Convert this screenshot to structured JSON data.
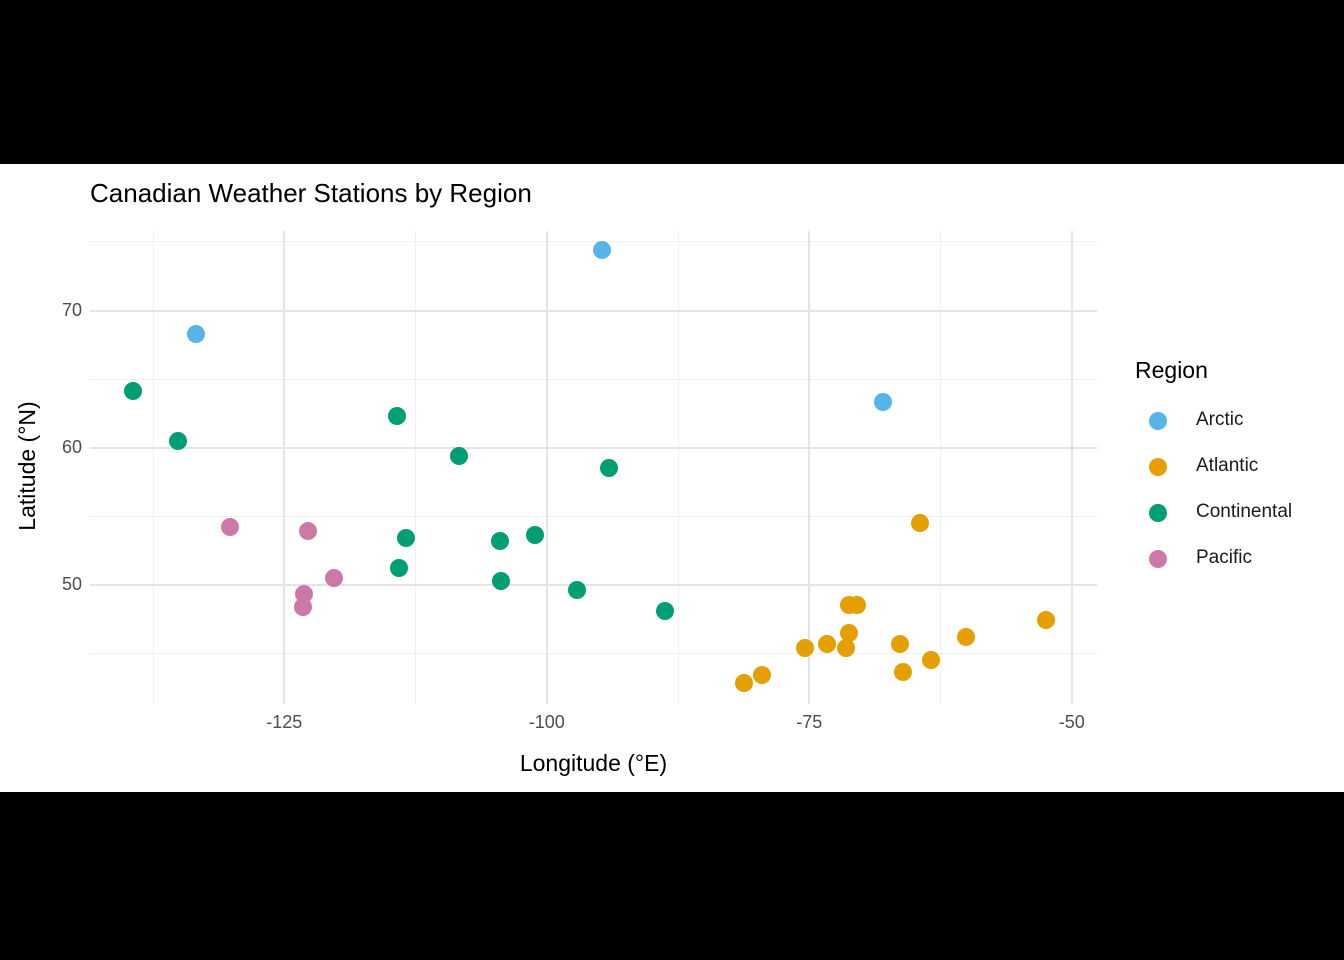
{
  "title": "Canadian Weather Stations by Region",
  "axes": {
    "x": {
      "label": "Longitude (°E)"
    },
    "y": {
      "label": "Latitude (°N)"
    }
  },
  "legend": {
    "title": "Region",
    "items": [
      {
        "label": "Arctic",
        "color": "#56B4E9"
      },
      {
        "label": "Atlantic",
        "color": "#E69F00"
      },
      {
        "label": "Continental",
        "color": "#009E73"
      },
      {
        "label": "Pacific",
        "color": "#CC79A7"
      }
    ]
  },
  "chart_data": {
    "type": "scatter",
    "title": "Canadian Weather Stations by Region",
    "xlabel": "Longitude (°E)",
    "ylabel": "Latitude (°N)",
    "xlim": [
      -143.5,
      -47.6
    ],
    "ylim": [
      41.3,
      75.8
    ],
    "x_ticks": [
      -125,
      -100,
      -75,
      -50
    ],
    "x_minor_ticks": [
      -137.5,
      -112.5,
      -87.5,
      -62.5
    ],
    "y_ticks": [
      50,
      60,
      70
    ],
    "y_minor_ticks": [
      45,
      55,
      65,
      75
    ],
    "grid": true,
    "legend_position": "right",
    "series": [
      {
        "name": "Arctic",
        "color": "#56B4E9",
        "points": [
          [
            -133.4,
            68.3
          ],
          [
            -94.7,
            74.4
          ],
          [
            -68.0,
            63.3
          ]
        ]
      },
      {
        "name": "Atlantic",
        "color": "#E69F00",
        "points": [
          [
            -64.5,
            54.5
          ],
          [
            -81.2,
            42.8
          ],
          [
            -79.5,
            43.4
          ],
          [
            -75.4,
            45.4
          ],
          [
            -73.3,
            45.7
          ],
          [
            -71.5,
            45.4
          ],
          [
            -71.2,
            46.5
          ],
          [
            -71.2,
            48.5
          ],
          [
            -70.5,
            48.5
          ],
          [
            -66.4,
            45.7
          ],
          [
            -66.1,
            43.6
          ],
          [
            -63.4,
            44.5
          ],
          [
            -60.1,
            46.2
          ],
          [
            -52.5,
            47.4
          ]
        ]
      },
      {
        "name": "Continental",
        "color": "#009E73",
        "points": [
          [
            -139.4,
            64.1
          ],
          [
            -135.1,
            60.5
          ],
          [
            -114.3,
            62.3
          ],
          [
            -113.4,
            53.4
          ],
          [
            -114.1,
            51.2
          ],
          [
            -108.4,
            59.4
          ],
          [
            -94.1,
            58.5
          ],
          [
            -104.5,
            53.2
          ],
          [
            -101.1,
            53.6
          ],
          [
            -104.4,
            50.3
          ],
          [
            -97.1,
            49.6
          ],
          [
            -88.7,
            48.1
          ]
        ]
      },
      {
        "name": "Pacific",
        "color": "#CC79A7",
        "points": [
          [
            -130.2,
            54.2
          ],
          [
            -122.7,
            53.9
          ],
          [
            -120.3,
            50.5
          ],
          [
            -123.1,
            49.3
          ],
          [
            -123.2,
            48.4
          ]
        ]
      }
    ]
  }
}
